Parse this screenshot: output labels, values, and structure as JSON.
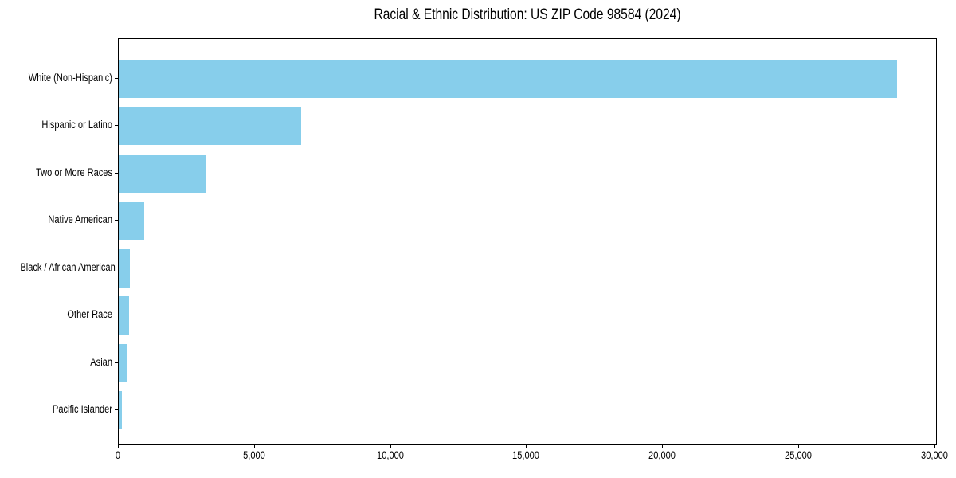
{
  "figure": {
    "title": "Racial & Ethnic Distribution: US ZIP Code 98584 (2024)",
    "background_color": "#ffffff",
    "text_color": "#000000",
    "spine_color": "#000000"
  },
  "chart_data": {
    "type": "bar",
    "orientation": "horizontal",
    "title": "Racial & Ethnic Distribution: US ZIP Code 98584 (2024)",
    "categories": [
      "White (Non-Hispanic)",
      "Hispanic or Latino",
      "Two or More Races",
      "Native American",
      "Black / African American",
      "Other Race",
      "Asian",
      "Pacific Islander"
    ],
    "values": [
      28600,
      6700,
      3200,
      940,
      400,
      370,
      300,
      130
    ],
    "xlabel": "",
    "ylabel": "",
    "xlim": [
      0,
      30100
    ],
    "xticks": {
      "values": [
        0,
        5000,
        10000,
        15000,
        20000,
        25000,
        30000
      ],
      "labels": [
        "0",
        "5,000",
        "10,000",
        "15,000",
        "20,000",
        "25,000",
        "30,000"
      ]
    },
    "bar_color": "#87CEEB",
    "grid": false,
    "legend": null
  }
}
